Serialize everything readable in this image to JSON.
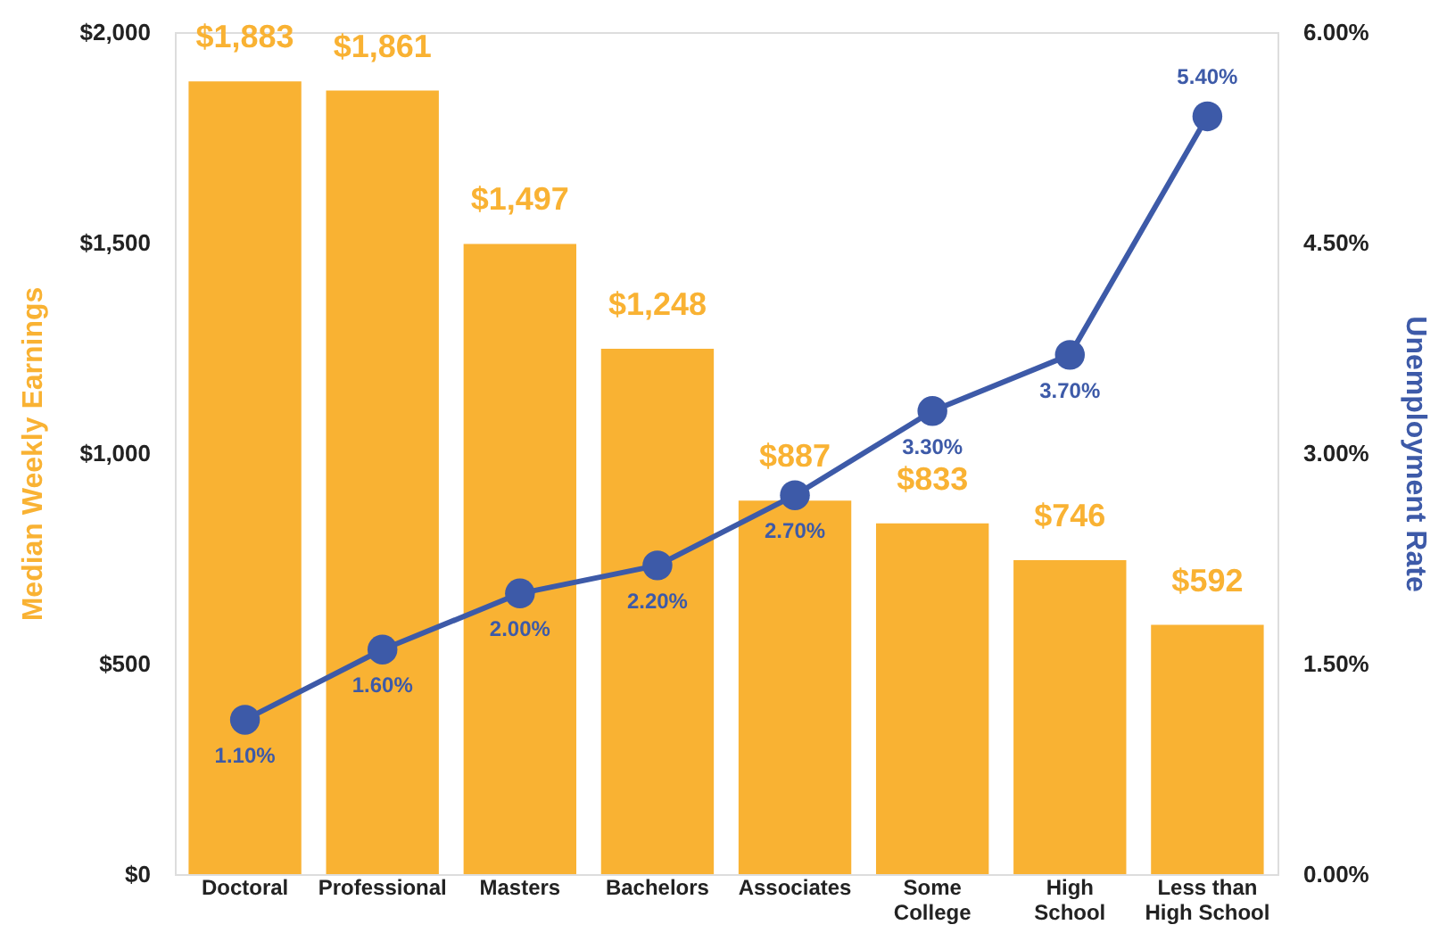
{
  "chart_data": {
    "type": "bar",
    "categories": [
      "Doctoral",
      "Professional",
      "Masters",
      "Bachelors",
      "Associates",
      "Some College",
      "High School",
      "Less than High School"
    ],
    "ylabel": "Median Weekly Earnings",
    "y2label": "Unemployment Rate",
    "ylim": [
      0,
      2000
    ],
    "yticks": [
      {
        "value": 0,
        "label": "$0"
      },
      {
        "value": 500,
        "label": "$500"
      },
      {
        "value": 1000,
        "label": "$1,000"
      },
      {
        "value": 1500,
        "label": "$1,500"
      },
      {
        "value": 2000,
        "label": "$2,000"
      }
    ],
    "y2lim": [
      0,
      6
    ],
    "y2ticks": [
      {
        "value": 0,
        "label": "0.00%"
      },
      {
        "value": 1.5,
        "label": "1.50%"
      },
      {
        "value": 3,
        "label": "3.00%"
      },
      {
        "value": 4.5,
        "label": "4.50%"
      },
      {
        "value": 6,
        "label": "6.00%"
      }
    ],
    "grid": false,
    "marker": "circle",
    "line_style": "solid",
    "series": [
      {
        "color": "#f9b233",
        "values": [
          1883,
          1861,
          1497,
          1248,
          887,
          833,
          746,
          592
        ],
        "value_labels": [
          "$1,883",
          "$1,861",
          "$1,497",
          "$1,248",
          "$887",
          "$833",
          "$746",
          "$592"
        ]
      },
      {
        "type": "line",
        "axis": "y2",
        "color": "#3d5aa8",
        "values": [
          1.1,
          1.6,
          2.0,
          2.2,
          2.7,
          3.3,
          3.7,
          5.4
        ],
        "value_labels": [
          "1.10%",
          "1.60%",
          "2.00%",
          "2.20%",
          "2.70%",
          "3.30%",
          "3.70%",
          "5.40%"
        ]
      }
    ]
  }
}
